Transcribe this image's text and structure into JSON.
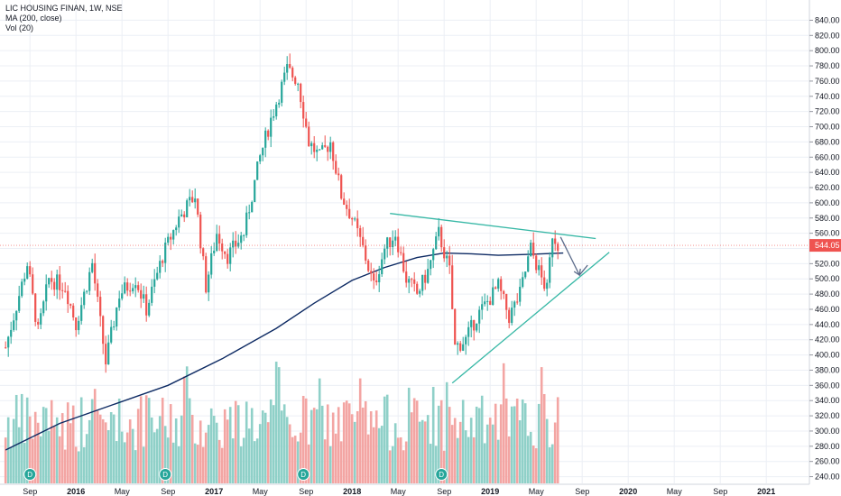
{
  "header": {
    "title": "LIC HOUSING FINAN, 1W, NSE",
    "indicator_ma": "MA (200, close)",
    "indicator_vol": "Vol (20)"
  },
  "colors": {
    "up": "#26a69a",
    "down": "#ef5350",
    "vol_up": "#8fd0c8",
    "vol_down": "#f3a5a3",
    "ma": "#0d2a63",
    "trend": "#38b8a6",
    "arrow": "#5b6b8a",
    "grid": "#eceff5",
    "price_tag": "#ef5350"
  },
  "chart_data": {
    "type": "candlestick",
    "y_ticks": [
      "840.00",
      "820.00",
      "800.00",
      "780.00",
      "760.00",
      "740.00",
      "720.00",
      "700.00",
      "680.00",
      "660.00",
      "640.00",
      "620.00",
      "600.00",
      "580.00",
      "560.00",
      "540.00",
      "520.00",
      "500.00",
      "480.00",
      "460.00",
      "440.00",
      "420.00",
      "400.00",
      "380.00",
      "360.00",
      "340.00",
      "320.00",
      "300.00",
      "280.00",
      "260.00",
      "240.00"
    ],
    "y_range": [
      230,
      850
    ],
    "x_labels": [
      "Sep",
      "2016",
      "May",
      "Sep",
      "2017",
      "May",
      "Sep",
      "2018",
      "May",
      "Sep",
      "2019",
      "May",
      "Sep",
      "2020",
      "May",
      "Sep",
      "2021"
    ],
    "x_label_weeks": [
      9,
      26,
      43,
      60,
      77,
      94,
      111,
      128,
      145,
      162,
      179,
      196,
      213,
      230,
      247,
      264,
      281
    ],
    "last_price": "544.05",
    "dividend_marker": "D",
    "dividend_weeks": [
      9,
      59,
      110,
      161
    ],
    "price_points": [
      {
        "w": 0,
        "p": 410
      },
      {
        "w": 8,
        "p": 520
      },
      {
        "w": 12,
        "p": 430
      },
      {
        "w": 16,
        "p": 500
      },
      {
        "w": 22,
        "p": 490
      },
      {
        "w": 26,
        "p": 440
      },
      {
        "w": 32,
        "p": 520
      },
      {
        "w": 37,
        "p": 390
      },
      {
        "w": 42,
        "p": 480
      },
      {
        "w": 48,
        "p": 500
      },
      {
        "w": 52,
        "p": 460
      },
      {
        "w": 58,
        "p": 530
      },
      {
        "w": 64,
        "p": 580
      },
      {
        "w": 70,
        "p": 610
      },
      {
        "w": 74,
        "p": 490
      },
      {
        "w": 78,
        "p": 560
      },
      {
        "w": 82,
        "p": 530
      },
      {
        "w": 88,
        "p": 560
      },
      {
        "w": 94,
        "p": 660
      },
      {
        "w": 98,
        "p": 710
      },
      {
        "w": 104,
        "p": 775
      },
      {
        "w": 108,
        "p": 760
      },
      {
        "w": 112,
        "p": 680
      },
      {
        "w": 116,
        "p": 660
      },
      {
        "w": 120,
        "p": 680
      },
      {
        "w": 124,
        "p": 610
      },
      {
        "w": 128,
        "p": 580
      },
      {
        "w": 132,
        "p": 540
      },
      {
        "w": 136,
        "p": 490
      },
      {
        "w": 140,
        "p": 540
      },
      {
        "w": 144,
        "p": 560
      },
      {
        "w": 148,
        "p": 500
      },
      {
        "w": 152,
        "p": 480
      },
      {
        "w": 156,
        "p": 510
      },
      {
        "w": 160,
        "p": 560
      },
      {
        "w": 164,
        "p": 510
      },
      {
        "w": 166,
        "p": 410
      },
      {
        "w": 170,
        "p": 420
      },
      {
        "w": 174,
        "p": 450
      },
      {
        "w": 178,
        "p": 470
      },
      {
        "w": 182,
        "p": 490
      },
      {
        "w": 186,
        "p": 450
      },
      {
        "w": 190,
        "p": 480
      },
      {
        "w": 194,
        "p": 540
      },
      {
        "w": 198,
        "p": 500
      },
      {
        "w": 200,
        "p": 485
      },
      {
        "w": 202,
        "p": 560
      },
      {
        "w": 204,
        "p": 545
      }
    ],
    "ma_points": [
      {
        "w": 0,
        "p": 275
      },
      {
        "w": 20,
        "p": 310
      },
      {
        "w": 40,
        "p": 335
      },
      {
        "w": 60,
        "p": 360
      },
      {
        "w": 80,
        "p": 395
      },
      {
        "w": 100,
        "p": 435
      },
      {
        "w": 114,
        "p": 468
      },
      {
        "w": 128,
        "p": 498
      },
      {
        "w": 140,
        "p": 515
      },
      {
        "w": 152,
        "p": 528
      },
      {
        "w": 162,
        "p": 534
      },
      {
        "w": 172,
        "p": 533
      },
      {
        "w": 182,
        "p": 531
      },
      {
        "w": 192,
        "p": 532
      },
      {
        "w": 206,
        "p": 534
      }
    ],
    "trendlines": [
      {
        "name": "upper",
        "from": {
          "w": 142,
          "p": 586
        },
        "to": {
          "w": 218,
          "p": 553
        }
      },
      {
        "name": "lower",
        "from": {
          "w": 165,
          "p": 363
        },
        "to": {
          "w": 223,
          "p": 535
        }
      }
    ],
    "projection_arrow": {
      "from": {
        "w": 205,
        "p": 555
      },
      "mid": {
        "w": 212,
        "p": 505
      },
      "to": {
        "w": 215,
        "p": 518
      }
    }
  }
}
